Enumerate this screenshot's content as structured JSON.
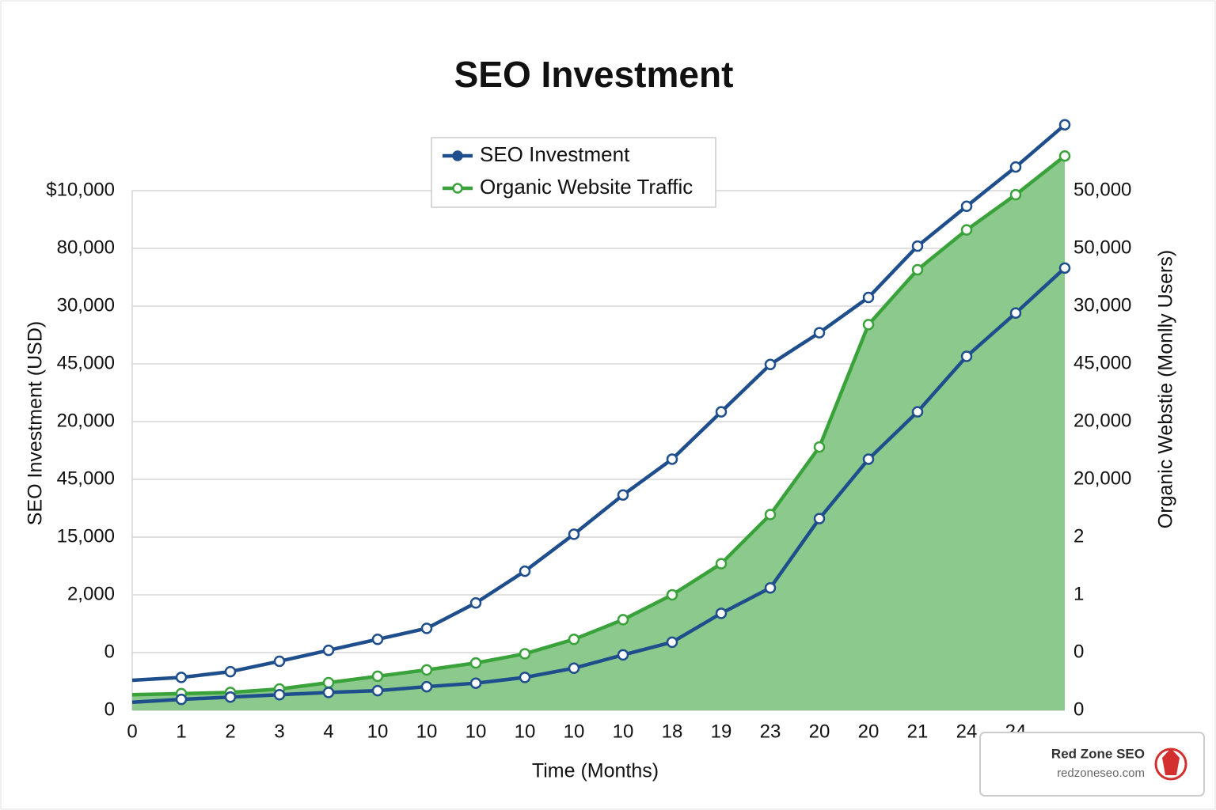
{
  "chart_data": {
    "type": "line",
    "title": "SEO Investment",
    "x_label": "Time (Months)",
    "y_label": "SEO Investment (USD)",
    "y2_label": "Organic Webstie (Monlly Users)",
    "categories": [
      "0",
      "1",
      "2",
      "3",
      "4",
      "10",
      "10",
      "10",
      "10",
      "10",
      "10",
      "18",
      "19",
      "23",
      "20",
      "20",
      "21",
      "24",
      "24",
      null
    ],
    "ylim": [
      0,
      9
    ],
    "yticks": [
      {
        "value": 0,
        "label": "0"
      },
      {
        "value": 1,
        "label": "0"
      },
      {
        "value": 2,
        "label": "2,000"
      },
      {
        "value": 3,
        "label": "15,000"
      },
      {
        "value": 4,
        "label": "45,000"
      },
      {
        "value": 5,
        "label": "20,000"
      },
      {
        "value": 6,
        "label": "45,000"
      },
      {
        "value": 7,
        "label": "30,000"
      },
      {
        "value": 8,
        "label": "80,000"
      },
      {
        "value": 9,
        "label": "$10,000"
      }
    ],
    "y2lim": [
      0,
      9
    ],
    "y2ticks": [
      {
        "value": 0,
        "label": "0"
      },
      {
        "value": 1,
        "label": "0"
      },
      {
        "value": 2,
        "label": "1"
      },
      {
        "value": 3,
        "label": "2"
      },
      {
        "value": 4,
        "label": "20,000"
      },
      {
        "value": 5,
        "label": "20,000"
      },
      {
        "value": 6,
        "label": "45,000"
      },
      {
        "value": 7,
        "label": "30,000"
      },
      {
        "value": 8,
        "label": "50,000"
      },
      {
        "value": 9,
        "label": "50,000"
      }
    ],
    "grid": true,
    "legend": "upper center",
    "series": [
      {
        "name": "SEO Investment",
        "color": "#1f4e8c",
        "values": [
          0.52,
          0.57,
          0.67,
          0.85,
          1.04,
          1.23,
          1.42,
          1.86,
          2.41,
          3.05,
          3.73,
          4.35,
          5.17,
          5.99,
          6.54,
          7.15,
          8.04,
          8.73,
          9.41,
          10.14
        ]
      },
      {
        "name": "Organic Website Traffic",
        "color": "#3aa23a",
        "fill": "#8cc98c",
        "values": [
          0.27,
          0.29,
          0.31,
          0.37,
          0.48,
          0.59,
          0.7,
          0.82,
          0.98,
          1.23,
          1.57,
          2.0,
          2.54,
          3.39,
          4.56,
          6.68,
          7.63,
          8.32,
          8.93,
          9.6
        ]
      },
      {
        "color": "#1f4e8c",
        "values": [
          0.14,
          0.19,
          0.23,
          0.27,
          0.31,
          0.34,
          0.41,
          0.47,
          0.57,
          0.73,
          0.96,
          1.18,
          1.68,
          2.12,
          3.32,
          4.35,
          5.17,
          6.13,
          6.88,
          7.66
        ]
      }
    ]
  },
  "footer": {
    "brand": "Red Zone SEO",
    "url": "redzoneseo.com"
  }
}
